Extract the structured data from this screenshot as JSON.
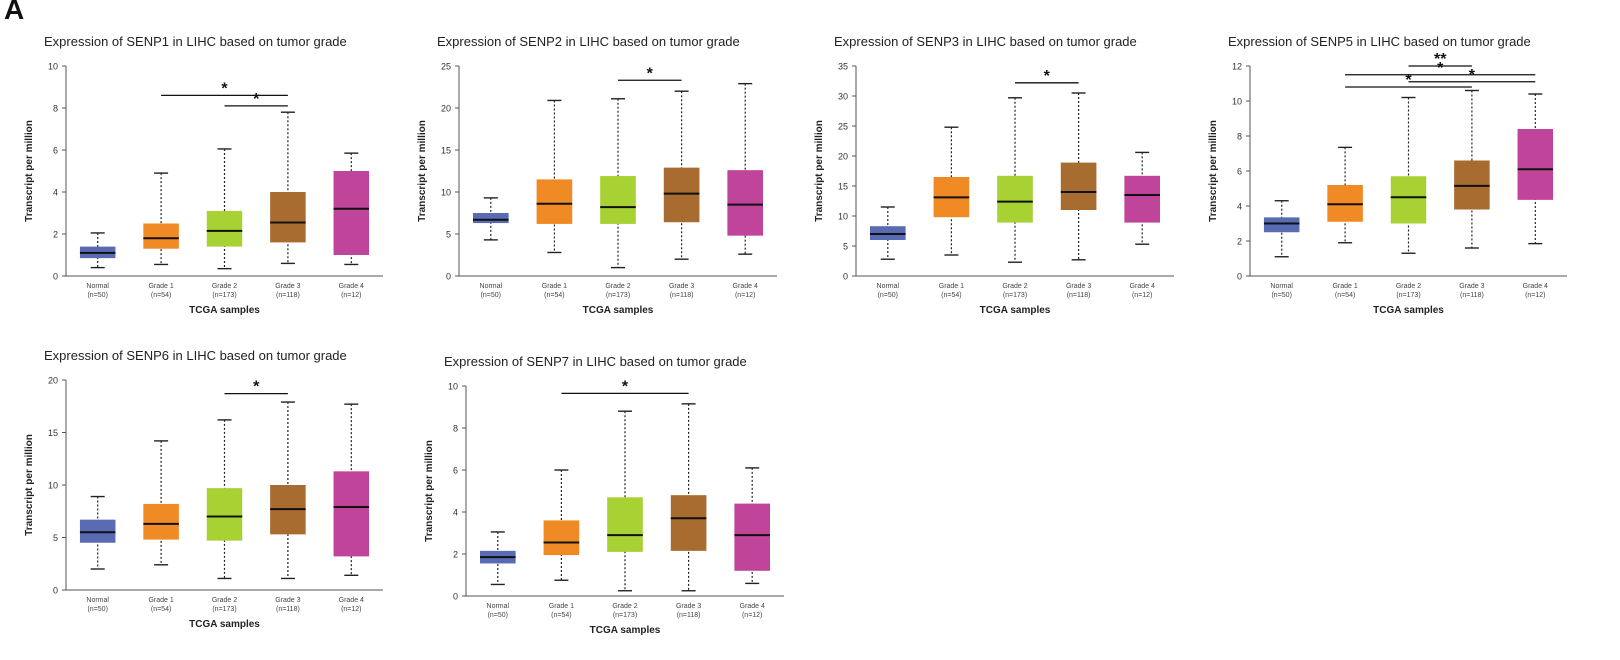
{
  "figure": {
    "panel_label": "A",
    "colors": {
      "Normal": "#5a6bb5",
      "Grade 1": "#f08a24",
      "Grade 2": "#a8d234",
      "Grade 3": "#a86b30",
      "Grade 4": "#c0459a"
    }
  },
  "chart_data": [
    {
      "type": "boxplot",
      "title": "Expression of SENP1 in LIHC based on tumor grade",
      "xlabel": "TCGA samples",
      "ylabel": "Transcript per million",
      "ylim": [
        0,
        10
      ],
      "yticks": [
        0,
        2,
        4,
        6,
        8,
        10
      ],
      "categories": [
        "Normal",
        "Grade 1",
        "Grade 2",
        "Grade 3",
        "Grade 4"
      ],
      "n_labels": [
        "(n=50)",
        "(n=54)",
        "(n=173)",
        "(n=118)",
        "(n=12)"
      ],
      "boxes": [
        {
          "min": 0.4,
          "q1": 0.85,
          "median": 1.1,
          "q3": 1.4,
          "max": 2.05
        },
        {
          "min": 0.55,
          "q1": 1.3,
          "median": 1.8,
          "q3": 2.5,
          "max": 4.9
        },
        {
          "min": 0.35,
          "q1": 1.4,
          "median": 2.15,
          "q3": 3.1,
          "max": 6.05
        },
        {
          "min": 0.6,
          "q1": 1.6,
          "median": 2.55,
          "q3": 4.0,
          "max": 7.8
        },
        {
          "min": 0.55,
          "q1": 1.0,
          "median": 3.2,
          "q3": 5.0,
          "max": 5.85
        }
      ],
      "significance": [
        {
          "from": 1,
          "to": 3,
          "y": 8.6,
          "label": "*"
        },
        {
          "from": 2,
          "to": 3,
          "y": 8.1,
          "label": "*"
        }
      ]
    },
    {
      "type": "boxplot",
      "title": "Expression of SENP2 in LIHC based on tumor grade",
      "xlabel": "TCGA samples",
      "ylabel": "Transcript per million",
      "ylim": [
        0,
        25
      ],
      "yticks": [
        0,
        5,
        10,
        15,
        20,
        25
      ],
      "categories": [
        "Normal",
        "Grade 1",
        "Grade 2",
        "Grade 3",
        "Grade 4"
      ],
      "n_labels": [
        "(n=50)",
        "(n=54)",
        "(n=173)",
        "(n=118)",
        "(n=12)"
      ],
      "boxes": [
        {
          "min": 4.3,
          "q1": 6.3,
          "median": 6.7,
          "q3": 7.5,
          "max": 9.3
        },
        {
          "min": 2.8,
          "q1": 6.2,
          "median": 8.6,
          "q3": 11.5,
          "max": 20.9
        },
        {
          "min": 1.0,
          "q1": 6.2,
          "median": 8.2,
          "q3": 11.9,
          "max": 21.1
        },
        {
          "min": 2.0,
          "q1": 6.4,
          "median": 9.8,
          "q3": 12.9,
          "max": 22.0
        },
        {
          "min": 2.6,
          "q1": 4.8,
          "median": 8.5,
          "q3": 12.6,
          "max": 22.9
        }
      ],
      "significance": [
        {
          "from": 2,
          "to": 3,
          "y": 23.3,
          "label": "*"
        }
      ]
    },
    {
      "type": "boxplot",
      "title": "Expression of SENP3 in LIHC based on tumor grade",
      "xlabel": "TCGA samples",
      "ylabel": "Transcript per million",
      "ylim": [
        0,
        35
      ],
      "yticks": [
        0,
        5,
        10,
        15,
        20,
        25,
        30,
        35
      ],
      "categories": [
        "Normal",
        "Grade 1",
        "Grade 2",
        "Grade 3",
        "Grade 4"
      ],
      "n_labels": [
        "(n=50)",
        "(n=54)",
        "(n=173)",
        "(n=118)",
        "(n=12)"
      ],
      "boxes": [
        {
          "min": 2.8,
          "q1": 6.0,
          "median": 7.0,
          "q3": 8.3,
          "max": 11.5
        },
        {
          "min": 3.5,
          "q1": 9.8,
          "median": 13.1,
          "q3": 16.5,
          "max": 24.8
        },
        {
          "min": 2.3,
          "q1": 8.9,
          "median": 12.4,
          "q3": 16.7,
          "max": 29.7
        },
        {
          "min": 2.7,
          "q1": 11.0,
          "median": 14.0,
          "q3": 18.9,
          "max": 30.5
        },
        {
          "min": 5.3,
          "q1": 8.9,
          "median": 13.5,
          "q3": 16.7,
          "max": 20.6
        }
      ],
      "significance": [
        {
          "from": 2,
          "to": 3,
          "y": 32.2,
          "label": "*"
        }
      ]
    },
    {
      "type": "boxplot",
      "title": "Expression of SENP5 in LIHC based on tumor grade",
      "xlabel": "TCGA samples",
      "ylabel": "Transcript per million",
      "ylim": [
        0,
        12
      ],
      "yticks": [
        0,
        2,
        4,
        6,
        8,
        10,
        12
      ],
      "categories": [
        "Normal",
        "Grade 1",
        "Grade 2",
        "Grade 3",
        "Grade 4"
      ],
      "n_labels": [
        "(n=50)",
        "(n=54)",
        "(n=173)",
        "(n=118)",
        "(n=12)"
      ],
      "boxes": [
        {
          "min": 1.1,
          "q1": 2.5,
          "median": 3.0,
          "q3": 3.35,
          "max": 4.3
        },
        {
          "min": 1.9,
          "q1": 3.1,
          "median": 4.1,
          "q3": 5.2,
          "max": 7.35
        },
        {
          "min": 1.3,
          "q1": 3.0,
          "median": 4.5,
          "q3": 5.7,
          "max": 10.2
        },
        {
          "min": 1.6,
          "q1": 3.8,
          "median": 5.15,
          "q3": 6.6,
          "max": 10.6
        },
        {
          "min": 1.85,
          "q1": 4.35,
          "median": 6.1,
          "q3": 8.4,
          "max": 10.4
        }
      ],
      "significance": [
        {
          "from": 2,
          "to": 3,
          "y": 12.0,
          "label": "**"
        },
        {
          "from": 1,
          "to": 4,
          "y": 11.5,
          "label": "*"
        },
        {
          "from": 2,
          "to": 4,
          "y": 11.1,
          "label": "*"
        },
        {
          "from": 1,
          "to": 3,
          "y": 10.8,
          "label": "*"
        }
      ]
    },
    {
      "type": "boxplot",
      "title": "Expression of SENP6 in LIHC based on tumor grade",
      "xlabel": "TCGA samples",
      "ylabel": "Transcript per million",
      "ylim": [
        0,
        20
      ],
      "yticks": [
        0,
        5,
        10,
        15,
        20
      ],
      "categories": [
        "Normal",
        "Grade 1",
        "Grade 2",
        "Grade 3",
        "Grade 4"
      ],
      "n_labels": [
        "(n=50)",
        "(n=54)",
        "(n=173)",
        "(n=118)",
        "(n=12)"
      ],
      "boxes": [
        {
          "min": 2.0,
          "q1": 4.5,
          "median": 5.5,
          "q3": 6.7,
          "max": 8.9
        },
        {
          "min": 2.4,
          "q1": 4.8,
          "median": 6.3,
          "q3": 8.2,
          "max": 14.2
        },
        {
          "min": 1.1,
          "q1": 4.7,
          "median": 7.0,
          "q3": 9.7,
          "max": 16.2
        },
        {
          "min": 1.1,
          "q1": 5.3,
          "median": 7.7,
          "q3": 10.0,
          "max": 17.9
        },
        {
          "min": 1.4,
          "q1": 3.2,
          "median": 7.9,
          "q3": 11.3,
          "max": 17.7
        }
      ],
      "significance": [
        {
          "from": 2,
          "to": 3,
          "y": 18.7,
          "label": "*"
        }
      ]
    },
    {
      "type": "boxplot",
      "title": "Expression of SENP7 in LIHC based on tumor grade",
      "xlabel": "TCGA samples",
      "ylabel": "Transcript per million",
      "ylim": [
        0,
        10
      ],
      "yticks": [
        0,
        2,
        4,
        6,
        8,
        10
      ],
      "categories": [
        "Normal",
        "Grade 1",
        "Grade 2",
        "Grade 3",
        "Grade 4"
      ],
      "n_labels": [
        "(n=50)",
        "(n=54)",
        "(n=173)",
        "(n=118)",
        "(n=12)"
      ],
      "boxes": [
        {
          "min": 0.55,
          "q1": 1.55,
          "median": 1.85,
          "q3": 2.15,
          "max": 3.05
        },
        {
          "min": 0.75,
          "q1": 1.95,
          "median": 2.55,
          "q3": 3.6,
          "max": 6.0
        },
        {
          "min": 0.25,
          "q1": 2.1,
          "median": 2.9,
          "q3": 4.7,
          "max": 8.8
        },
        {
          "min": 0.25,
          "q1": 2.15,
          "median": 3.7,
          "q3": 4.8,
          "max": 9.15
        },
        {
          "min": 0.6,
          "q1": 1.2,
          "median": 2.9,
          "q3": 4.4,
          "max": 6.1
        }
      ],
      "significance": [
        {
          "from": 1,
          "to": 3,
          "y": 9.65,
          "label": "*"
        }
      ]
    }
  ]
}
